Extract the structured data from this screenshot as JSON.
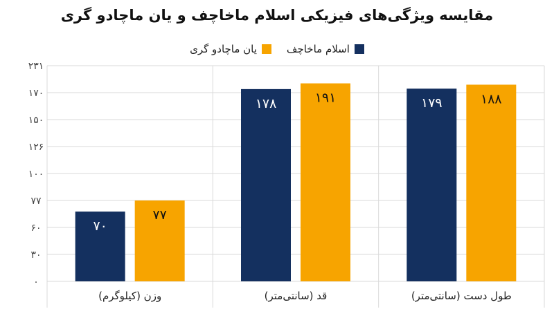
{
  "chart_data": {
    "type": "bar",
    "title": "مقایسه ویژگی‌های فیزیکی اسلام ماخاچف و یان ماچادو گری",
    "categories": [
      "وزن (کیلوگرم)",
      "قد (سانتی‌متر)",
      "طول دست (سانتی‌متر)"
    ],
    "series": [
      {
        "name": "اسلام ماخاچف",
        "color": "#14305f",
        "values": [
          70,
          178,
          179
        ],
        "labels": [
          "۷۰",
          "۱۷۸",
          "۱۷۹"
        ]
      },
      {
        "name": "یان ماچادو گری",
        "color": "#f7a400",
        "values": [
          77,
          191,
          188
        ],
        "labels": [
          "۷۷",
          "۱۹۱",
          "۱۸۸"
        ]
      }
    ],
    "y_ticks": [
      0,
      30,
      60,
      77,
      100,
      126,
      150,
      170,
      231
    ],
    "y_tick_labels": [
      "۰",
      "۳۰",
      "۶۰",
      "۷۷",
      "۱۰۰",
      "۱۲۶",
      "۱۵۰",
      "۱۷۰",
      "۲۳۱"
    ],
    "ylim": [
      0,
      231
    ],
    "grid": true,
    "legend_position": "top-center"
  }
}
